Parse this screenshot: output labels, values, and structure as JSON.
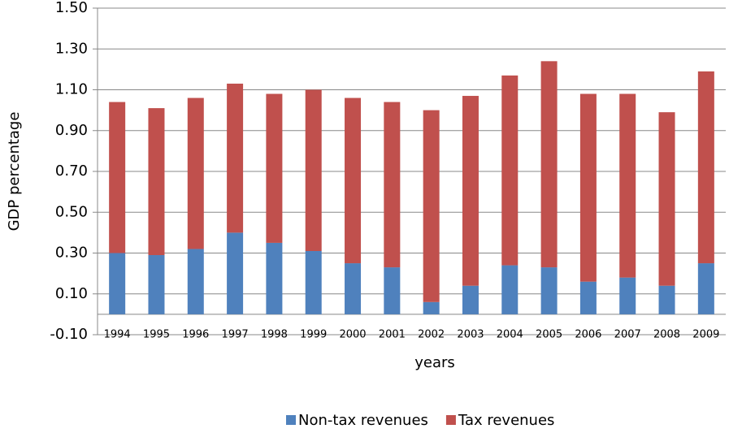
{
  "chart_data": {
    "type": "stacked_bar",
    "x_label": "years",
    "y_label": "GDP  percentage",
    "categories": [
      "1994",
      "1995",
      "1996",
      "1997",
      "1998",
      "1999",
      "2000",
      "2001",
      "2002",
      "2003",
      "2004",
      "2005",
      "2006",
      "2007",
      "2008",
      "2009"
    ],
    "series": [
      {
        "name": "Non-tax revenues",
        "color": "#4f81bd",
        "values": [
          0.3,
          0.29,
          0.32,
          0.4,
          0.35,
          0.31,
          0.25,
          0.23,
          0.06,
          0.14,
          0.24,
          0.23,
          0.16,
          0.18,
          0.14,
          0.25
        ]
      },
      {
        "name": "Tax revenues",
        "color": "#c0504d",
        "values": [
          0.74,
          0.72,
          0.74,
          0.73,
          0.73,
          0.79,
          0.81,
          0.81,
          0.94,
          0.93,
          0.93,
          1.01,
          0.92,
          0.9,
          0.85,
          0.94
        ]
      }
    ],
    "ylim": [
      -0.1,
      1.5
    ],
    "yticks": [
      {
        "value": -0.1,
        "label": "-0.10"
      },
      {
        "value": 0.1,
        "label": "0.10"
      },
      {
        "value": 0.3,
        "label": "0.30"
      },
      {
        "value": 0.5,
        "label": "0.50"
      },
      {
        "value": 0.7,
        "label": "0.70"
      },
      {
        "value": 0.9,
        "label": "0.90"
      },
      {
        "value": 1.1,
        "label": "1.10"
      },
      {
        "value": 1.3,
        "label": "1.30"
      },
      {
        "value": 1.5,
        "label": "1.50"
      }
    ],
    "grid": true,
    "legend": "bottom"
  }
}
